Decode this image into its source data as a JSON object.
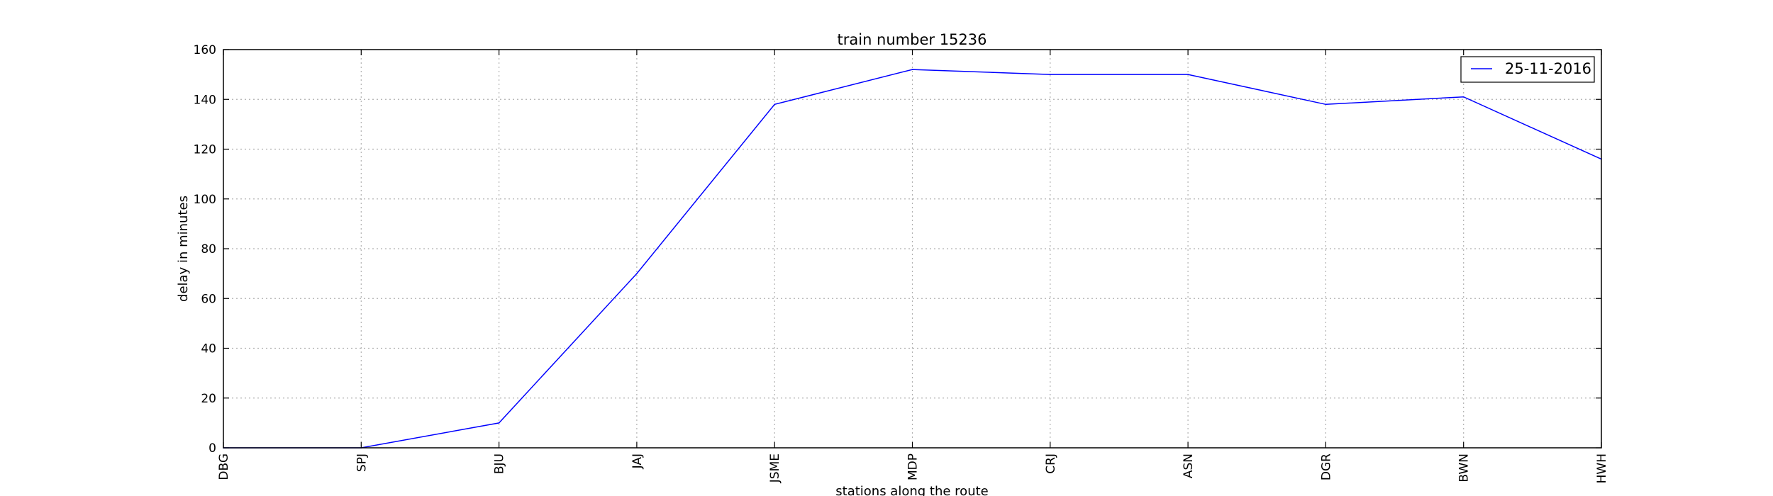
{
  "chart_data": {
    "type": "line",
    "title": "train number 15236",
    "xlabel": "stations along the route",
    "ylabel": "delay in minutes",
    "categories": [
      "DBG",
      "SPJ",
      "BJU",
      "JAJ",
      "JSME",
      "MDP",
      "CRJ",
      "ASN",
      "DGR",
      "BWN",
      "HWH"
    ],
    "ylim": [
      0,
      160
    ],
    "yticks": [
      0,
      20,
      40,
      60,
      80,
      100,
      120,
      140,
      160
    ],
    "grid": true,
    "legend": "top-right",
    "series": [
      {
        "name": "25-11-2016",
        "color": "#0000ff",
        "values": [
          0,
          0,
          10,
          70,
          138,
          152,
          150,
          150,
          138,
          141,
          116
        ]
      }
    ]
  }
}
